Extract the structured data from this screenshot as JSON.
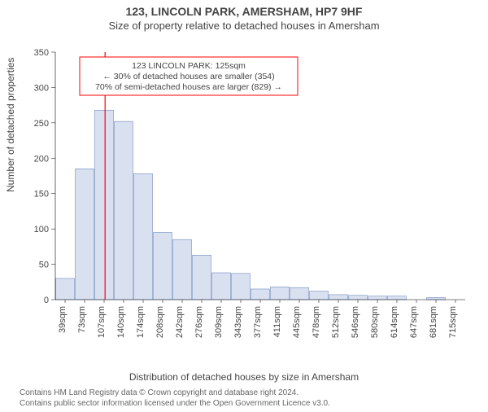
{
  "titles": {
    "address": "123, LINCOLN PARK, AMERSHAM, HP7 9HF",
    "subtitle": "Size of property relative to detached houses in Amersham",
    "y_label": "Number of detached properties",
    "x_label": "Distribution of detached houses by size in Amersham"
  },
  "chart": {
    "type": "histogram",
    "ylim": [
      0,
      350
    ],
    "ytick_step": 50,
    "y_ticks": [
      0,
      50,
      100,
      150,
      200,
      250,
      300,
      350
    ],
    "x_categories": [
      "39sqm",
      "73sqm",
      "107sqm",
      "140sqm",
      "174sqm",
      "208sqm",
      "242sqm",
      "276sqm",
      "309sqm",
      "343sqm",
      "377sqm",
      "411sqm",
      "445sqm",
      "478sqm",
      "512sqm",
      "546sqm",
      "580sqm",
      "614sqm",
      "647sqm",
      "681sqm",
      "715sqm"
    ],
    "bars": [
      30,
      185,
      268,
      252,
      178,
      95,
      85,
      63,
      38,
      37,
      15,
      18,
      17,
      12,
      7,
      6,
      5,
      5,
      0,
      3,
      0
    ],
    "bar_fill": "#b9c7e4",
    "bar_stroke": "#5b79b5",
    "marker_color": "#ff0000",
    "marker_index_after": 2,
    "annotation": {
      "lines": [
        "123 LINCOLN PARK: 125sqm",
        "← 30% of detached houses are smaller (354)",
        "70% of semi-detached houses are larger (829) →"
      ],
      "border_color": "#ff0000"
    },
    "plot_bg": "#ffffff",
    "tick_fontsize": 11
  },
  "footer": {
    "line1": "Contains HM Land Registry data © Crown copyright and database right 2024.",
    "line2": "Contains public sector information licensed under the Open Government Licence v3.0."
  }
}
